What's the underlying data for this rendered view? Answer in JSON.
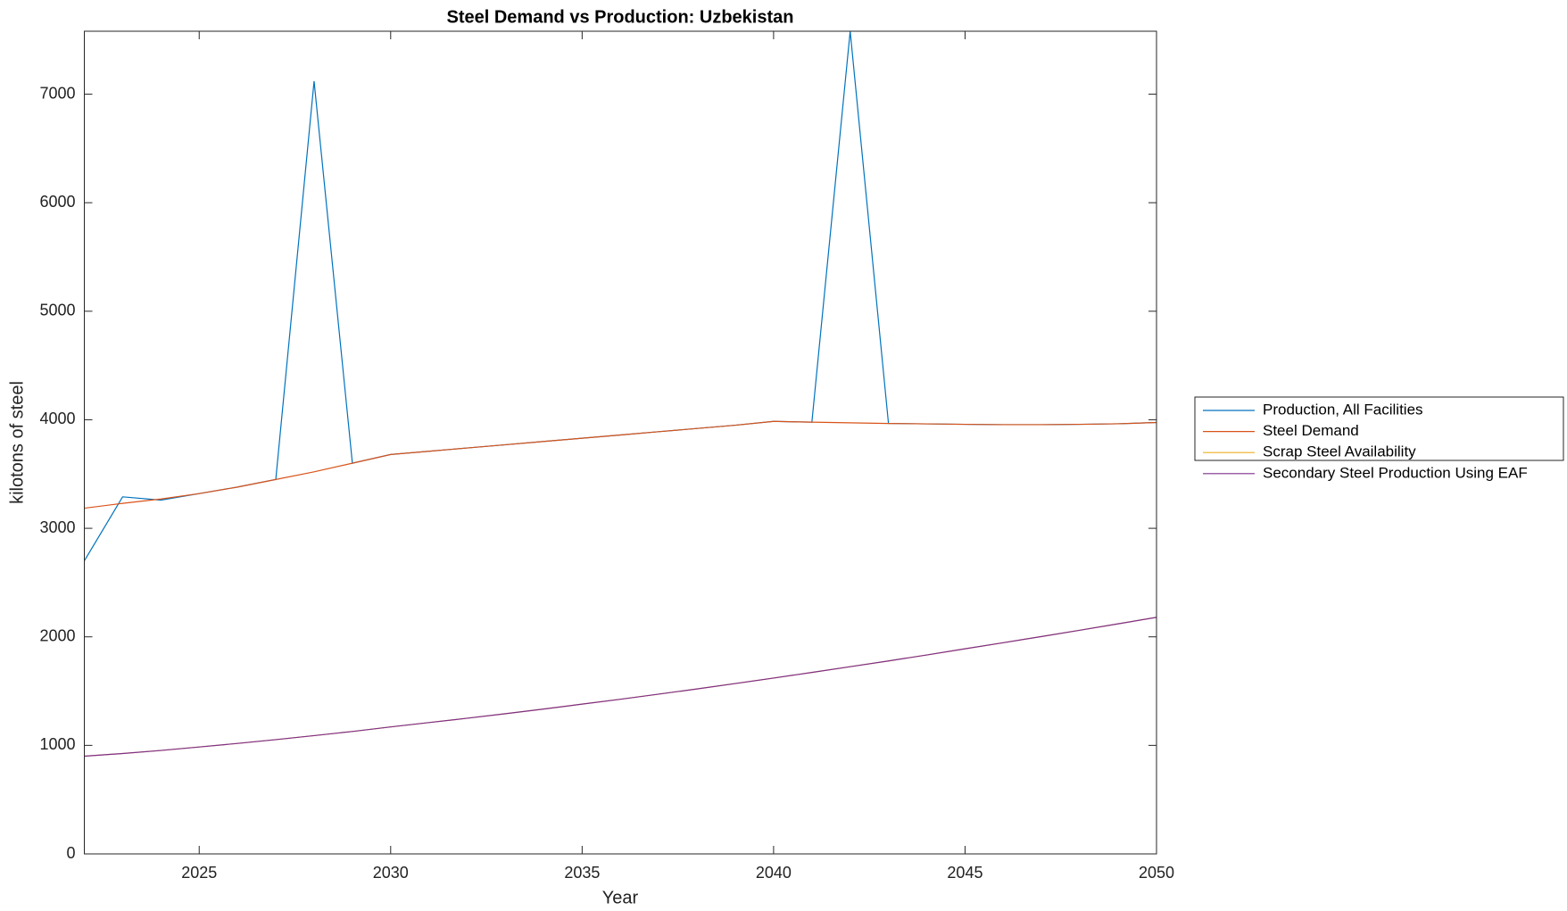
{
  "chart_data": {
    "type": "line",
    "title": "Steel Demand vs Production: Uzbekistan",
    "x_label": "Year",
    "y_label": "kilotons of steel",
    "x": [
      2022,
      2023,
      2024,
      2025,
      2026,
      2027,
      2028,
      2029,
      2030,
      2031,
      2032,
      2033,
      2034,
      2035,
      2036,
      2037,
      2038,
      2039,
      2040,
      2041,
      2042,
      2043,
      2044,
      2045,
      2046,
      2047,
      2048,
      2049,
      2050
    ],
    "series": [
      {
        "name": "Production, All Facilities",
        "color": "#0072BD",
        "values": [
          2700,
          3290,
          3260,
          3320,
          3380,
          3450,
          7120,
          3600,
          3680,
          3710,
          3740,
          3770,
          3800,
          3830,
          3860,
          3890,
          3920,
          3950,
          3985,
          3978,
          7580,
          3966,
          3962,
          3958,
          3955,
          3955,
          3958,
          3963,
          3975
        ]
      },
      {
        "name": "Steel Demand",
        "color": "#D95319",
        "values": [
          3185,
          3230,
          3270,
          3320,
          3380,
          3450,
          3520,
          3600,
          3680,
          3710,
          3740,
          3770,
          3800,
          3830,
          3860,
          3890,
          3920,
          3950,
          3985,
          3978,
          3972,
          3966,
          3962,
          3958,
          3955,
          3955,
          3958,
          3963,
          3975
        ]
      },
      {
        "name": "Scrap Steel Availability",
        "color": "#EDB120",
        "values": [
          900,
          925,
          953,
          985,
          1018,
          1053,
          1090,
          1128,
          1170,
          1210,
          1250,
          1292,
          1335,
          1380,
          1425,
          1472,
          1520,
          1570,
          1620,
          1672,
          1725,
          1778,
          1833,
          1890,
          1946,
          2003,
          2061,
          2120,
          2180
        ]
      },
      {
        "name": "Secondary Steel Production Using EAF",
        "color": "#7E2F8E",
        "values": [
          900,
          925,
          953,
          985,
          1018,
          1053,
          1090,
          1128,
          1170,
          1210,
          1250,
          1292,
          1335,
          1380,
          1425,
          1472,
          1520,
          1570,
          1620,
          1672,
          1725,
          1778,
          1833,
          1890,
          1946,
          2003,
          2061,
          2120,
          2180
        ]
      }
    ],
    "xlim": [
      2022,
      2050
    ],
    "xticks": [
      2025,
      2030,
      2035,
      2040,
      2045,
      2050
    ],
    "ylim": [
      0,
      7580
    ],
    "yticks": [
      0,
      1000,
      2000,
      3000,
      4000,
      5000,
      6000,
      7000
    ],
    "grid": false,
    "legend": "outside-right"
  }
}
